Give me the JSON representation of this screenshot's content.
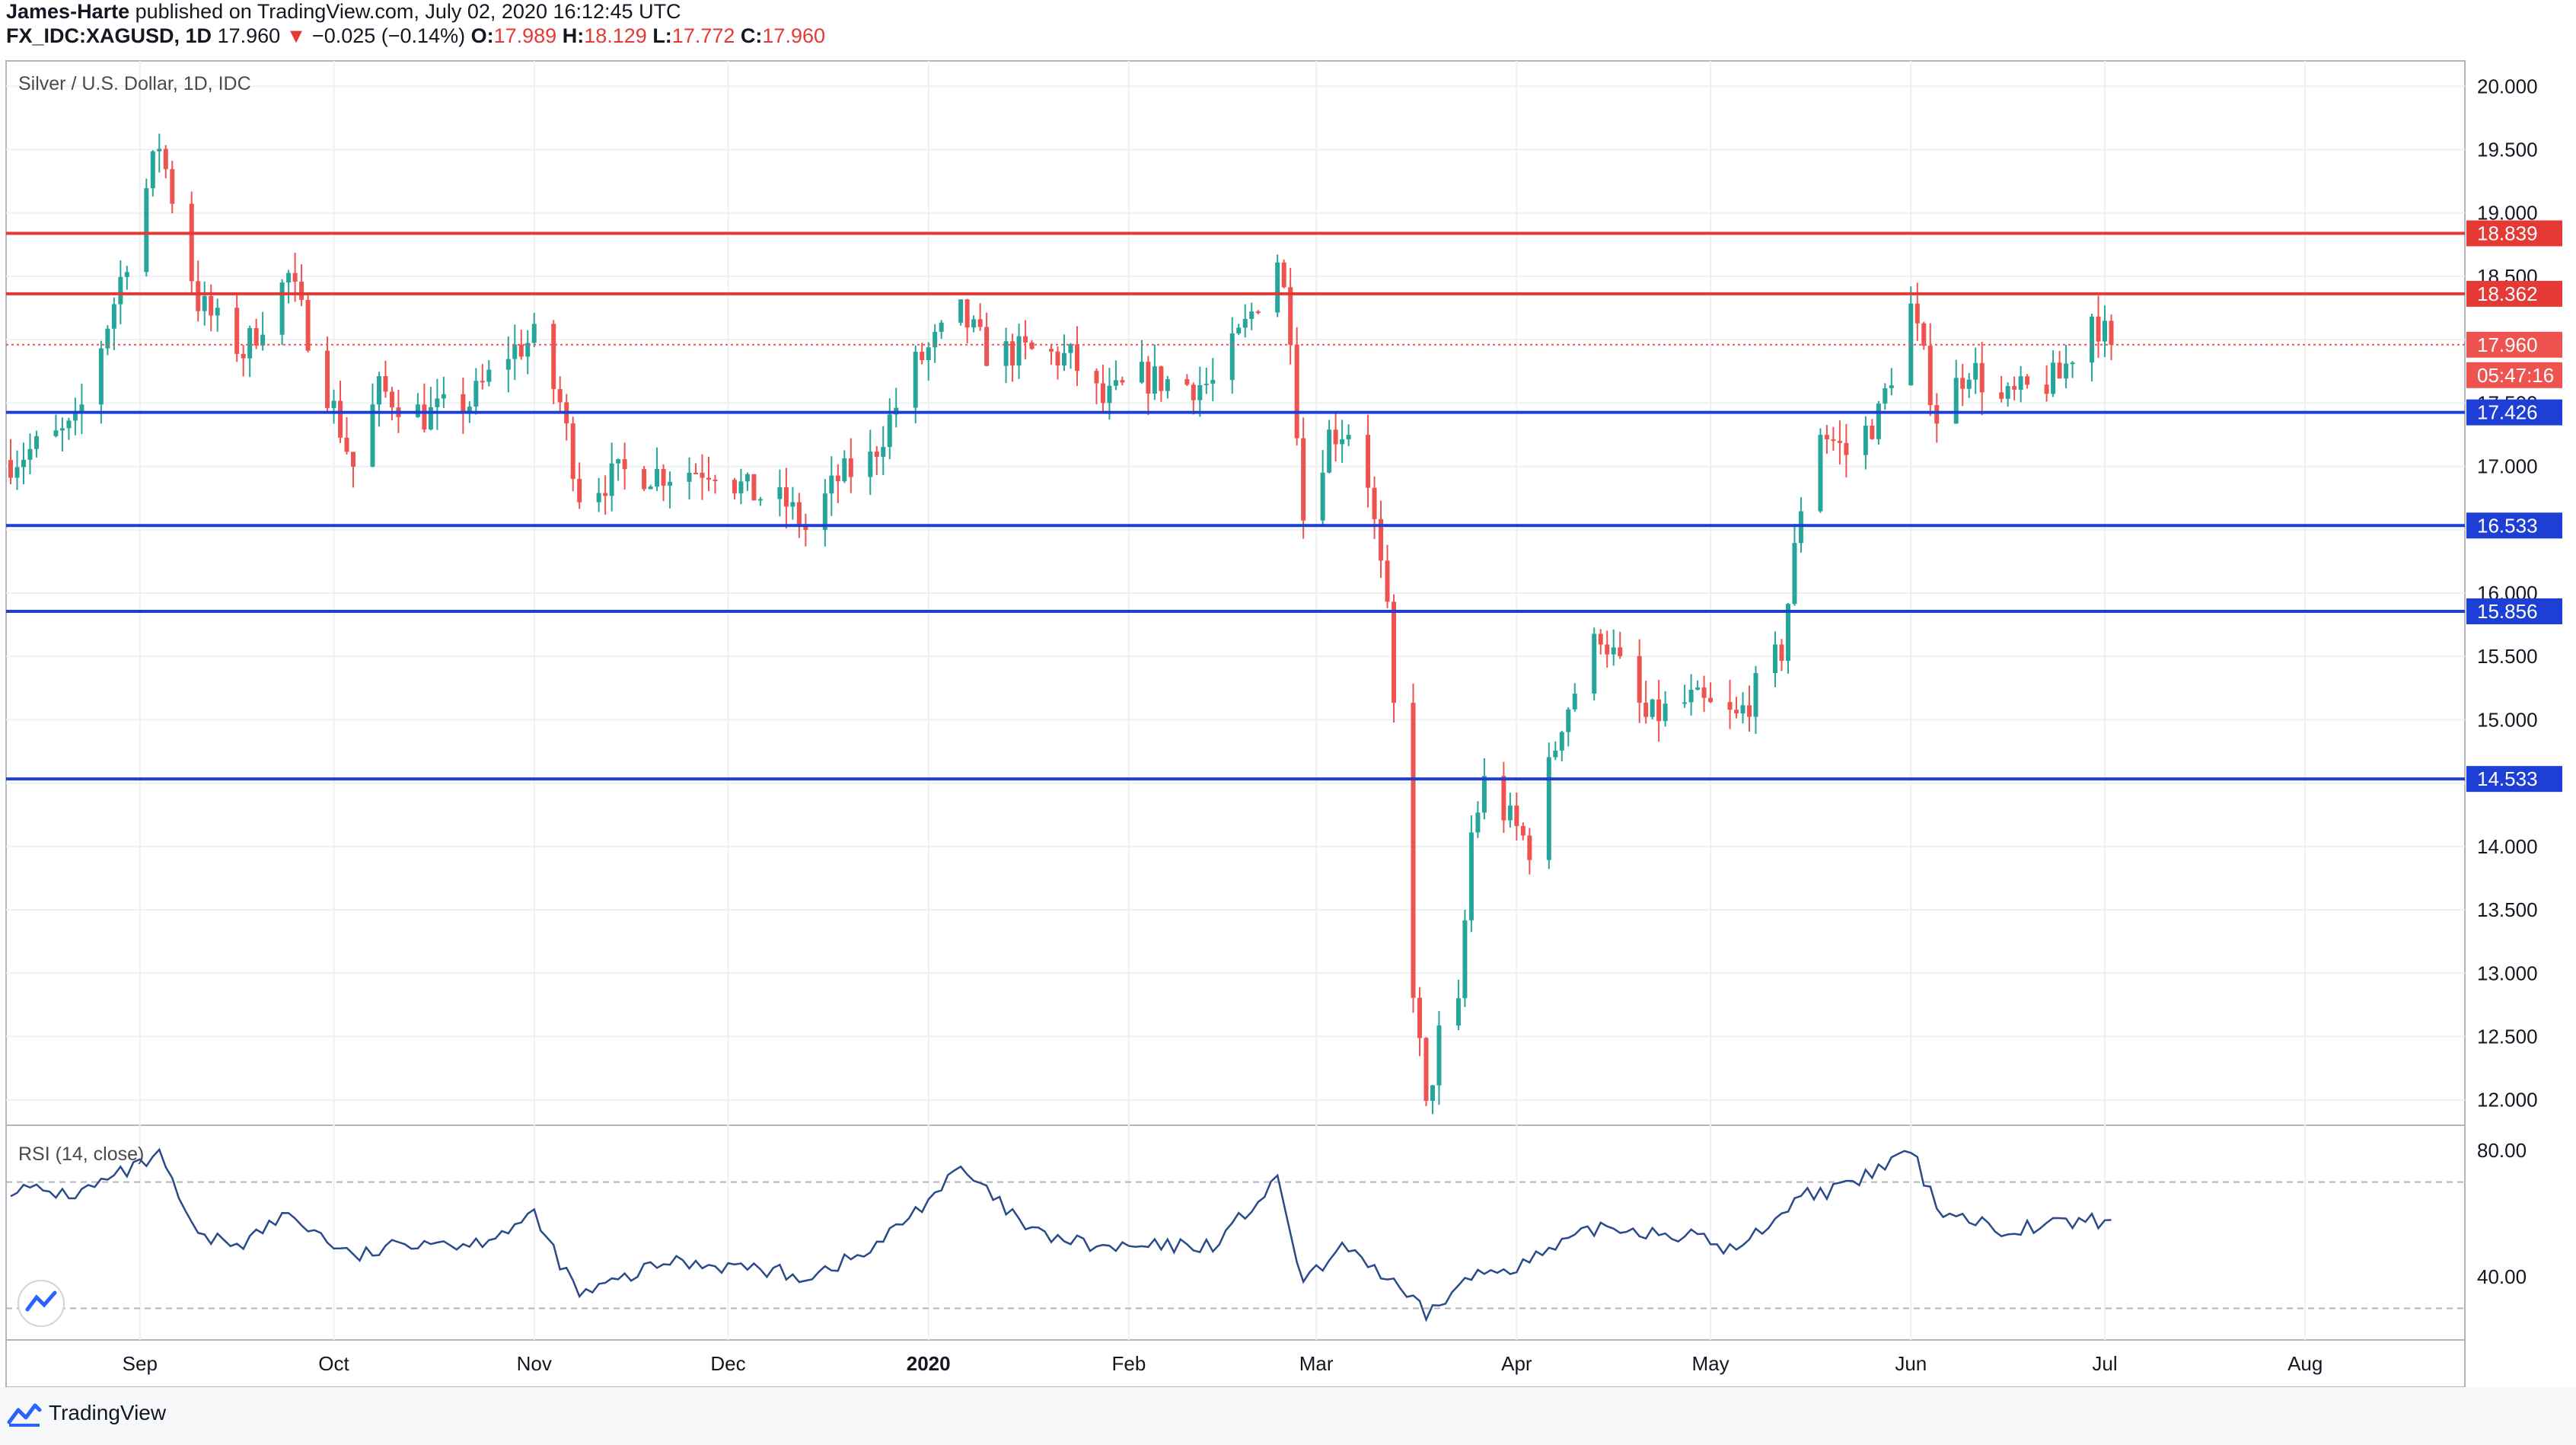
{
  "header": {
    "author": "James-Harte",
    "published_text": "published on TradingView.com, July 02, 2020 16:12:45 UTC",
    "symbol": "FX_IDC:XAGUSD, 1D",
    "last": "17.960",
    "change_arrow": "▼",
    "change": "−0.025 (−0.14%)",
    "o_label": "O:",
    "o_value": "17.989",
    "h_label": "H:",
    "h_value": "18.129",
    "l_label": "L:",
    "l_value": "17.772",
    "c_label": "C:",
    "c_value": "17.960"
  },
  "pane_title": "Silver / U.S. Dollar, 1D, IDC",
  "rsi_title": "RSI (14, close)",
  "footer": {
    "brand": "TradingView",
    "logo_icon": "tradingview-logo-icon"
  },
  "colors": {
    "up": "#26a69a",
    "down": "#ef5350",
    "resistance": "#e53935",
    "support": "#1e3fd6",
    "rsi": "#2a4a8a"
  },
  "chart_data": [
    {
      "type": "candlestick",
      "ylim": [
        11.8,
        20.2
      ],
      "y_ticks": [
        "20.000",
        "19.500",
        "19.000",
        "18.500",
        "18.000",
        "17.500",
        "17.000",
        "16.500",
        "16.000",
        "15.500",
        "15.000",
        "14.500",
        "14.000",
        "13.500",
        "13.000",
        "12.500",
        "12.000"
      ],
      "x_ticks": [
        "Sep",
        "Oct",
        "Nov",
        "Dec",
        "2020",
        "Feb",
        "Mar",
        "Apr",
        "May",
        "Jun",
        "Jul",
        "Aug"
      ],
      "x_tick_dates": [
        "2019-09-01",
        "2019-10-01",
        "2019-11-01",
        "2019-12-01",
        "2020-01-01",
        "2020-02-01",
        "2020-03-01",
        "2020-04-01",
        "2020-05-01",
        "2020-06-01",
        "2020-07-01",
        "2020-08-01"
      ],
      "horizontal_levels": [
        {
          "value": 18.839,
          "label": "18.839",
          "role": "resistance"
        },
        {
          "value": 18.362,
          "label": "18.362",
          "role": "resistance"
        },
        {
          "value": 17.426,
          "label": "17.426",
          "role": "support"
        },
        {
          "value": 16.533,
          "label": "16.533",
          "role": "support"
        },
        {
          "value": 15.856,
          "label": "15.856",
          "role": "support"
        },
        {
          "value": 14.533,
          "label": "14.533",
          "role": "support"
        }
      ],
      "last_price": {
        "value": 17.96,
        "label": "17.960",
        "countdown": "05:47:16"
      },
      "price_path": [
        {
          "date": "2019-08-12",
          "close": 17.05
        },
        {
          "date": "2019-08-22",
          "close": 17.3
        },
        {
          "date": "2019-08-28",
          "close": 18.3
        },
        {
          "date": "2019-09-04",
          "close": 19.55
        },
        {
          "date": "2019-09-10",
          "close": 18.3
        },
        {
          "date": "2019-09-17",
          "close": 17.9
        },
        {
          "date": "2019-09-24",
          "close": 18.5
        },
        {
          "date": "2019-10-01",
          "close": 17.45
        },
        {
          "date": "2019-10-04",
          "close": 17.0
        },
        {
          "date": "2019-10-08",
          "close": 17.6
        },
        {
          "date": "2019-10-15",
          "close": 17.4
        },
        {
          "date": "2019-10-22",
          "close": 17.5
        },
        {
          "date": "2019-10-28",
          "close": 17.9
        },
        {
          "date": "2019-11-01",
          "close": 18.0
        },
        {
          "date": "2019-11-05",
          "close": 17.5
        },
        {
          "date": "2019-11-08",
          "close": 16.8
        },
        {
          "date": "2019-11-15",
          "close": 16.95
        },
        {
          "date": "2019-11-22",
          "close": 16.95
        },
        {
          "date": "2019-11-29",
          "close": 17.0
        },
        {
          "date": "2019-12-04",
          "close": 16.8
        },
        {
          "date": "2019-12-10",
          "close": 16.7
        },
        {
          "date": "2019-12-13",
          "close": 16.5
        },
        {
          "date": "2019-12-18",
          "close": 16.9
        },
        {
          "date": "2019-12-23",
          "close": 17.05
        },
        {
          "date": "2019-12-30",
          "close": 17.8
        },
        {
          "date": "2020-01-06",
          "close": 18.2
        },
        {
          "date": "2020-01-10",
          "close": 17.9
        },
        {
          "date": "2020-01-17",
          "close": 17.9
        },
        {
          "date": "2020-01-23",
          "close": 17.85
        },
        {
          "date": "2020-01-28",
          "close": 17.5
        },
        {
          "date": "2020-02-03",
          "close": 17.7
        },
        {
          "date": "2020-02-10",
          "close": 17.65
        },
        {
          "date": "2020-02-14",
          "close": 17.65
        },
        {
          "date": "2020-02-19",
          "close": 18.1
        },
        {
          "date": "2020-02-24",
          "close": 18.65
        },
        {
          "date": "2020-02-26",
          "close": 18.1
        },
        {
          "date": "2020-02-28",
          "close": 16.6
        },
        {
          "date": "2020-03-03",
          "close": 17.25
        },
        {
          "date": "2020-03-06",
          "close": 17.3
        },
        {
          "date": "2020-03-09",
          "close": 16.9
        },
        {
          "date": "2020-03-12",
          "close": 15.8
        },
        {
          "date": "2020-03-16",
          "close": 12.9
        },
        {
          "date": "2020-03-18",
          "close": 11.9
        },
        {
          "date": "2020-03-20",
          "close": 12.5
        },
        {
          "date": "2020-03-23",
          "close": 12.7
        },
        {
          "date": "2020-03-25",
          "close": 14.1
        },
        {
          "date": "2020-03-27",
          "close": 14.5
        },
        {
          "date": "2020-03-31",
          "close": 14.2
        },
        {
          "date": "2020-04-03",
          "close": 14.0
        },
        {
          "date": "2020-04-08",
          "close": 15.0
        },
        {
          "date": "2020-04-14",
          "close": 15.7
        },
        {
          "date": "2020-04-21",
          "close": 15.0
        },
        {
          "date": "2020-04-28",
          "close": 15.15
        },
        {
          "date": "2020-05-05",
          "close": 15.0
        },
        {
          "date": "2020-05-12",
          "close": 15.55
        },
        {
          "date": "2020-05-15",
          "close": 16.7
        },
        {
          "date": "2020-05-18",
          "close": 17.3
        },
        {
          "date": "2020-05-22",
          "close": 17.1
        },
        {
          "date": "2020-05-27",
          "close": 17.4
        },
        {
          "date": "2020-06-01",
          "close": 18.25
        },
        {
          "date": "2020-06-05",
          "close": 17.4
        },
        {
          "date": "2020-06-10",
          "close": 17.8
        },
        {
          "date": "2020-06-15",
          "close": 17.5
        },
        {
          "date": "2020-06-19",
          "close": 17.6
        },
        {
          "date": "2020-06-24",
          "close": 17.7
        },
        {
          "date": "2020-06-29",
          "close": 18.2
        },
        {
          "date": "2020-07-02",
          "close": 17.96
        }
      ],
      "x_axis_end": "2020-08-25"
    },
    {
      "type": "line",
      "name": "RSI (14, close)",
      "ylim": [
        20,
        88
      ],
      "y_ticks": [
        "80.00",
        "40.00"
      ],
      "levels": [
        70,
        30
      ],
      "points": [
        {
          "date": "2019-08-12",
          "value": 68
        },
        {
          "date": "2019-08-22",
          "value": 66
        },
        {
          "date": "2019-09-04",
          "value": 78
        },
        {
          "date": "2019-09-10",
          "value": 52
        },
        {
          "date": "2019-09-17",
          "value": 51
        },
        {
          "date": "2019-09-24",
          "value": 60
        },
        {
          "date": "2019-10-04",
          "value": 46
        },
        {
          "date": "2019-10-15",
          "value": 52
        },
        {
          "date": "2019-10-22",
          "value": 50
        },
        {
          "date": "2019-11-01",
          "value": 59
        },
        {
          "date": "2019-11-08",
          "value": 34
        },
        {
          "date": "2019-11-22",
          "value": 45
        },
        {
          "date": "2019-12-04",
          "value": 43
        },
        {
          "date": "2019-12-13",
          "value": 40
        },
        {
          "date": "2019-12-23",
          "value": 48
        },
        {
          "date": "2020-01-06",
          "value": 74
        },
        {
          "date": "2020-01-17",
          "value": 54
        },
        {
          "date": "2020-01-28",
          "value": 49
        },
        {
          "date": "2020-02-14",
          "value": 50
        },
        {
          "date": "2020-02-24",
          "value": 70
        },
        {
          "date": "2020-02-28",
          "value": 38
        },
        {
          "date": "2020-03-06",
          "value": 50
        },
        {
          "date": "2020-03-18",
          "value": 28
        },
        {
          "date": "2020-03-25",
          "value": 40
        },
        {
          "date": "2020-04-03",
          "value": 45
        },
        {
          "date": "2020-04-14",
          "value": 56
        },
        {
          "date": "2020-04-28",
          "value": 53
        },
        {
          "date": "2020-05-05",
          "value": 48
        },
        {
          "date": "2020-05-15",
          "value": 66
        },
        {
          "date": "2020-05-22",
          "value": 68
        },
        {
          "date": "2020-06-01",
          "value": 80
        },
        {
          "date": "2020-06-05",
          "value": 62
        },
        {
          "date": "2020-06-15",
          "value": 55
        },
        {
          "date": "2020-06-24",
          "value": 57
        },
        {
          "date": "2020-07-02",
          "value": 58
        }
      ]
    }
  ]
}
